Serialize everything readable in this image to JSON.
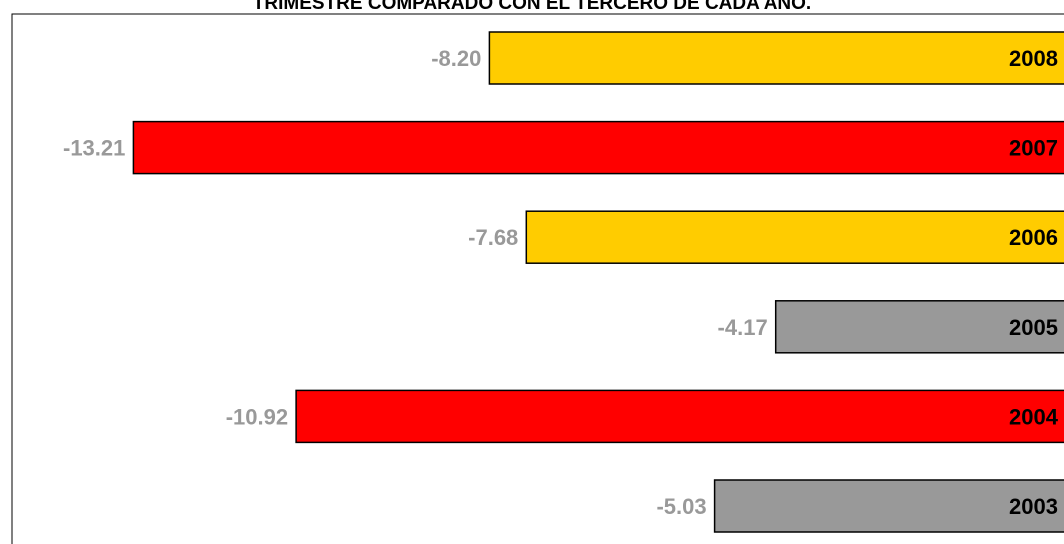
{
  "chart_data": {
    "type": "bar",
    "orientation": "horizontal",
    "title": "TRIMESTRE COMPARADO CON EL TERCERO DE CADA AÑO.",
    "categories": [
      "2008",
      "2007",
      "2006",
      "2005",
      "2004",
      "2003"
    ],
    "values": [
      -8.2,
      -13.21,
      -7.68,
      -4.17,
      -10.92,
      -5.03
    ],
    "value_labels": [
      "-8.20",
      "-13.21",
      "-7.68",
      "-4.17",
      "-10.92",
      "-5.03"
    ],
    "colors": [
      "#FFCC00",
      "#FF0000",
      "#FFCC00",
      "#999999",
      "#FF0000",
      "#999999"
    ],
    "value_label_color": "#999999",
    "category_label_color": "#000000",
    "xlim": [
      -14.5,
      0
    ],
    "grid": false,
    "legend": "none"
  }
}
